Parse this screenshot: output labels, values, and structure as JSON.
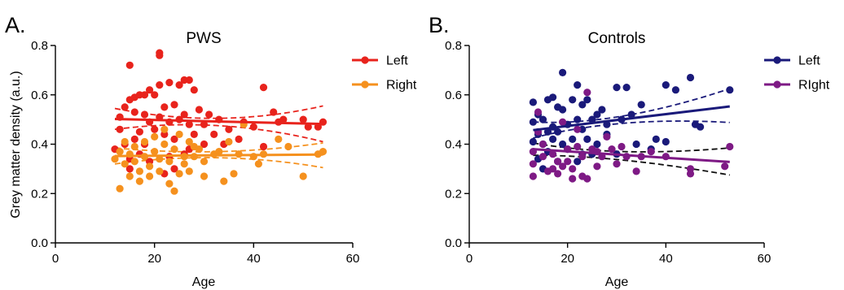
{
  "chart_data": [
    {
      "type": "scatter",
      "panel_label": "A.",
      "title": "PWS",
      "xlabel": "Age",
      "ylabel": "Grey matter density (a.u.)",
      "xlim": [
        0,
        60
      ],
      "ylim": [
        0,
        0.8
      ],
      "xticks": [
        0,
        20,
        40,
        60
      ],
      "yticks": [
        0.0,
        0.2,
        0.4,
        0.6,
        0.8
      ],
      "xtick_labels": [
        "0",
        "20",
        "40",
        "60"
      ],
      "ytick_labels": [
        "0.0",
        "0.2",
        "0.4",
        "0.6",
        "0.8"
      ],
      "grid": false,
      "legend_position": "top-right",
      "series": [
        {
          "name": "Left",
          "color": "#e8231c",
          "points": [
            [
              12,
              0.38
            ],
            [
              13,
              0.51
            ],
            [
              13,
              0.46
            ],
            [
              14,
              0.55
            ],
            [
              14,
              0.4
            ],
            [
              15,
              0.72
            ],
            [
              15,
              0.58
            ],
            [
              15,
              0.34
            ],
            [
              15,
              0.3
            ],
            [
              16,
              0.59
            ],
            [
              16,
              0.53
            ],
            [
              16,
              0.42
            ],
            [
              17,
              0.6
            ],
            [
              17,
              0.45
            ],
            [
              17,
              0.36
            ],
            [
              18,
              0.6
            ],
            [
              18,
              0.52
            ],
            [
              18,
              0.4
            ],
            [
              19,
              0.62
            ],
            [
              19,
              0.49
            ],
            [
              19,
              0.33
            ],
            [
              20,
              0.6
            ],
            [
              20,
              0.46
            ],
            [
              21,
              0.77
            ],
            [
              21,
              0.64
            ],
            [
              21,
              0.76
            ],
            [
              21,
              0.51
            ],
            [
              22,
              0.55
            ],
            [
              22,
              0.44
            ],
            [
              22,
              0.28
            ],
            [
              23,
              0.65
            ],
            [
              23,
              0.49
            ],
            [
              23,
              0.35
            ],
            [
              24,
              0.56
            ],
            [
              24,
              0.42
            ],
            [
              24,
              0.3
            ],
            [
              25,
              0.64
            ],
            [
              25,
              0.5
            ],
            [
              26,
              0.66
            ],
            [
              26,
              0.52
            ],
            [
              26,
              0.36
            ],
            [
              27,
              0.66
            ],
            [
              27,
              0.48
            ],
            [
              27,
              0.38
            ],
            [
              28,
              0.62
            ],
            [
              28,
              0.44
            ],
            [
              29,
              0.54
            ],
            [
              30,
              0.48
            ],
            [
              30,
              0.4
            ],
            [
              31,
              0.52
            ],
            [
              32,
              0.44
            ],
            [
              33,
              0.5
            ],
            [
              34,
              0.4
            ],
            [
              35,
              0.46
            ],
            [
              37,
              0.42
            ],
            [
              38,
              0.49
            ],
            [
              40,
              0.47
            ],
            [
              42,
              0.63
            ],
            [
              42,
              0.39
            ],
            [
              44,
              0.53
            ],
            [
              45,
              0.49
            ],
            [
              46,
              0.5
            ],
            [
              50,
              0.5
            ],
            [
              51,
              0.47
            ],
            [
              53,
              0.47
            ],
            [
              54,
              0.49
            ]
          ],
          "fit": {
            "start": [
              12,
              0.502
            ],
            "end": [
              54,
              0.482
            ]
          },
          "ci_upper": [
            [
              12,
              0.545
            ],
            [
              33,
              0.505
            ],
            [
              54,
              0.555
            ]
          ],
          "ci_lower": [
            [
              12,
              0.46
            ],
            [
              33,
              0.475
            ],
            [
              54,
              0.41
            ]
          ]
        },
        {
          "name": "Right",
          "color": "#f5911e",
          "points": [
            [
              12,
              0.34
            ],
            [
              13,
              0.22
            ],
            [
              13,
              0.37
            ],
            [
              14,
              0.32
            ],
            [
              14,
              0.41
            ],
            [
              15,
              0.27
            ],
            [
              15,
              0.36
            ],
            [
              16,
              0.33
            ],
            [
              16,
              0.39
            ],
            [
              17,
              0.25
            ],
            [
              17,
              0.29
            ],
            [
              18,
              0.35
            ],
            [
              18,
              0.41
            ],
            [
              19,
              0.27
            ],
            [
              19,
              0.31
            ],
            [
              20,
              0.37
            ],
            [
              20,
              0.43
            ],
            [
              21,
              0.29
            ],
            [
              21,
              0.34
            ],
            [
              22,
              0.4
            ],
            [
              22,
              0.46
            ],
            [
              23,
              0.24
            ],
            [
              23,
              0.33
            ],
            [
              24,
              0.21
            ],
            [
              24,
              0.38
            ],
            [
              25,
              0.28
            ],
            [
              25,
              0.44
            ],
            [
              26,
              0.32
            ],
            [
              26,
              0.35
            ],
            [
              27,
              0.29
            ],
            [
              27,
              0.41
            ],
            [
              28,
              0.35
            ],
            [
              28,
              0.39
            ],
            [
              29,
              0.38
            ],
            [
              30,
              0.27
            ],
            [
              30,
              0.33
            ],
            [
              32,
              0.36
            ],
            [
              33,
              0.37
            ],
            [
              34,
              0.25
            ],
            [
              35,
              0.41
            ],
            [
              36,
              0.28
            ],
            [
              37,
              0.36
            ],
            [
              38,
              0.48
            ],
            [
              40,
              0.35
            ],
            [
              41,
              0.32
            ],
            [
              42,
              0.36
            ],
            [
              45,
              0.42
            ],
            [
              47,
              0.39
            ],
            [
              50,
              0.27
            ],
            [
              53,
              0.36
            ],
            [
              54,
              0.37
            ]
          ],
          "fit": {
            "start": [
              12,
              0.352
            ],
            "end": [
              54,
              0.358
            ]
          },
          "ci_upper": [
            [
              12,
              0.385
            ],
            [
              33,
              0.37
            ],
            [
              54,
              0.405
            ]
          ],
          "ci_lower": [
            [
              12,
              0.32
            ],
            [
              33,
              0.345
            ],
            [
              54,
              0.305
            ]
          ]
        }
      ]
    },
    {
      "type": "scatter",
      "panel_label": "B.",
      "title": "Controls",
      "xlabel": "Age",
      "ylabel": "",
      "xlim": [
        0,
        60
      ],
      "ylim": [
        0,
        0.8
      ],
      "xticks": [
        0,
        20,
        40,
        60
      ],
      "yticks": [
        0.0,
        0.2,
        0.4,
        0.6,
        0.8
      ],
      "xtick_labels": [
        "0",
        "20",
        "40",
        "60"
      ],
      "ytick_labels": [
        "0.0",
        "0.2",
        "0.4",
        "0.6",
        "0.8"
      ],
      "grid": false,
      "legend_position": "top-right",
      "series": [
        {
          "name": "Left",
          "color": "#1a1a7a",
          "ci_color": "#1a1a7a",
          "points": [
            [
              13,
              0.57
            ],
            [
              13,
              0.49
            ],
            [
              13,
              0.41
            ],
            [
              14,
              0.34
            ],
            [
              14,
              0.44
            ],
            [
              14,
              0.52
            ],
            [
              15,
              0.4
            ],
            [
              15,
              0.5
            ],
            [
              15,
              0.3
            ],
            [
              16,
              0.58
            ],
            [
              16,
              0.45
            ],
            [
              16,
              0.37
            ],
            [
              17,
              0.59
            ],
            [
              17,
              0.47
            ],
            [
              17,
              0.42
            ],
            [
              18,
              0.55
            ],
            [
              18,
              0.45
            ],
            [
              18,
              0.33
            ],
            [
              19,
              0.69
            ],
            [
              19,
              0.54
            ],
            [
              19,
              0.4
            ],
            [
              20,
              0.48
            ],
            [
              20,
              0.38
            ],
            [
              21,
              0.58
            ],
            [
              21,
              0.42
            ],
            [
              22,
              0.64
            ],
            [
              22,
              0.5
            ],
            [
              22,
              0.33
            ],
            [
              23,
              0.56
            ],
            [
              23,
              0.46
            ],
            [
              23,
              0.36
            ],
            [
              24,
              0.58
            ],
            [
              24,
              0.42
            ],
            [
              25,
              0.5
            ],
            [
              25,
              0.36
            ],
            [
              26,
              0.52
            ],
            [
              26,
              0.4
            ],
            [
              27,
              0.54
            ],
            [
              28,
              0.48
            ],
            [
              28,
              0.44
            ],
            [
              30,
              0.63
            ],
            [
              30,
              0.36
            ],
            [
              31,
              0.5
            ],
            [
              32,
              0.63
            ],
            [
              33,
              0.52
            ],
            [
              34,
              0.4
            ],
            [
              35,
              0.56
            ],
            [
              37,
              0.38
            ],
            [
              38,
              0.42
            ],
            [
              40,
              0.64
            ],
            [
              40,
              0.41
            ],
            [
              42,
              0.62
            ],
            [
              45,
              0.67
            ],
            [
              46,
              0.48
            ],
            [
              47,
              0.47
            ],
            [
              53,
              0.62
            ]
          ],
          "fit": {
            "start": [
              13,
              0.457
            ],
            "end": [
              53,
              0.553
            ]
          },
          "ci_upper": [
            [
              13,
              0.49
            ],
            [
              30,
              0.515
            ],
            [
              53,
              0.625
            ]
          ],
          "ci_lower": [
            [
              13,
              0.425
            ],
            [
              30,
              0.485
            ],
            [
              53,
              0.488
            ]
          ]
        },
        {
          "name": "RIght",
          "color": "#7e1a85",
          "ci_color": "#111111",
          "points": [
            [
              13,
              0.27
            ],
            [
              13,
              0.32
            ],
            [
              13,
              0.37
            ],
            [
              14,
              0.53
            ],
            [
              14,
              0.45
            ],
            [
              15,
              0.4
            ],
            [
              15,
              0.35
            ],
            [
              16,
              0.29
            ],
            [
              17,
              0.3
            ],
            [
              17,
              0.36
            ],
            [
              18,
              0.28
            ],
            [
              18,
              0.33
            ],
            [
              19,
              0.31
            ],
            [
              19,
              0.49
            ],
            [
              20,
              0.33
            ],
            [
              20,
              0.38
            ],
            [
              21,
              0.3
            ],
            [
              21,
              0.26
            ],
            [
              22,
              0.46
            ],
            [
              22,
              0.39
            ],
            [
              23,
              0.27
            ],
            [
              23,
              0.35
            ],
            [
              24,
              0.61
            ],
            [
              24,
              0.26
            ],
            [
              25,
              0.38
            ],
            [
              26,
              0.37
            ],
            [
              26,
              0.31
            ],
            [
              27,
              0.35
            ],
            [
              28,
              0.43
            ],
            [
              29,
              0.38
            ],
            [
              30,
              0.32
            ],
            [
              31,
              0.39
            ],
            [
              32,
              0.35
            ],
            [
              34,
              0.29
            ],
            [
              35,
              0.35
            ],
            [
              37,
              0.37
            ],
            [
              40,
              0.35
            ],
            [
              45,
              0.28
            ],
            [
              45,
              0.3
            ],
            [
              52,
              0.31
            ],
            [
              53,
              0.39
            ]
          ],
          "fit": {
            "start": [
              13,
              0.38
            ],
            "end": [
              53,
              0.328
            ]
          },
          "ci_upper": [
            [
              13,
              0.405
            ],
            [
              30,
              0.37
            ],
            [
              53,
              0.385
            ]
          ],
          "ci_lower": [
            [
              13,
              0.355
            ],
            [
              30,
              0.335
            ],
            [
              53,
              0.275
            ]
          ]
        }
      ]
    }
  ]
}
